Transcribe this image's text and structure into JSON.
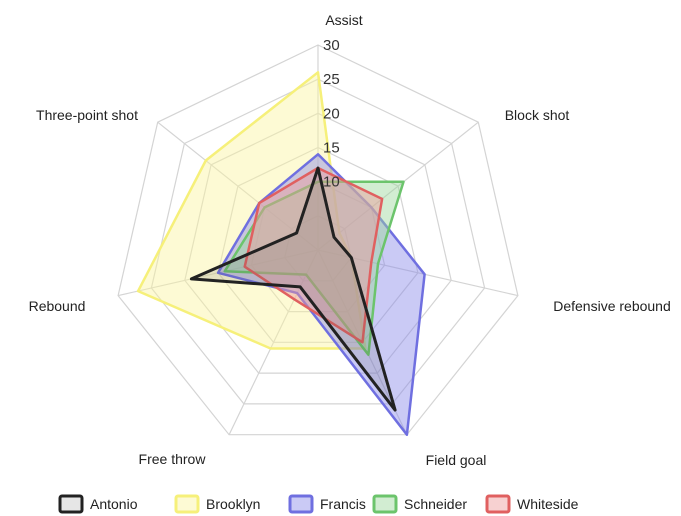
{
  "chart_data": {
    "type": "radar",
    "axes": [
      "Assist",
      "Block shot",
      "Defensive rebound",
      "Field goal",
      "Free throw",
      "Rebound",
      "Three-point shot"
    ],
    "rlim": [
      0,
      30
    ],
    "ticks": [
      10,
      15,
      20,
      25,
      30
    ],
    "tick_labels": [
      "10",
      "15",
      "20",
      "25",
      "30"
    ],
    "grid": true,
    "legend_position": "bottom",
    "series": [
      {
        "name": "Antonio",
        "values": [
          12,
          3,
          5,
          26,
          6,
          19,
          4
        ],
        "stroke": "#222222",
        "fill": "#555555",
        "fill_opacity": 0.15
      },
      {
        "name": "Brooklyn",
        "values": [
          26,
          4,
          5,
          16,
          16,
          27,
          21
        ],
        "stroke": "#f6f07a",
        "fill": "#fbf3a0",
        "fill_opacity": 0.45
      },
      {
        "name": "Francis",
        "values": [
          14,
          10,
          16,
          30,
          7,
          15,
          11
        ],
        "stroke": "#6f6fe0",
        "fill": "#8a8ae8",
        "fill_opacity": 0.45
      },
      {
        "name": "Schneider",
        "values": [
          10,
          16,
          9,
          17,
          4,
          14,
          10
        ],
        "stroke": "#6cc46c",
        "fill": "#9bd89b",
        "fill_opacity": 0.45
      },
      {
        "name": "Whiteside",
        "values": [
          12,
          12,
          8,
          15,
          8,
          11,
          11
        ],
        "stroke": "#e06060",
        "fill": "#ee9a9a",
        "fill_opacity": 0.45
      }
    ]
  }
}
